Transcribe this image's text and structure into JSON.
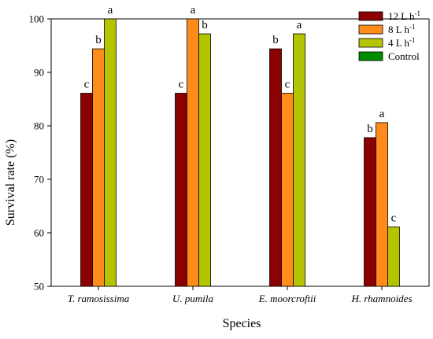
{
  "chart_data": {
    "type": "bar",
    "xlabel": "Species",
    "ylabel": "Survival rate (%)",
    "ylim": [
      50,
      100
    ],
    "yticks": [
      50,
      60,
      70,
      80,
      90,
      100
    ],
    "categories": [
      "T. ramosissima",
      "U. pumila",
      "E. moorcroftii",
      "H. rhamnoides"
    ],
    "series": [
      {
        "name": "12 L h-1",
        "base": "12 L h",
        "sup": "-1",
        "color": "#8b0000",
        "values": [
          86.1,
          86.1,
          94.4,
          77.8
        ],
        "letters": [
          "c",
          "c",
          "b",
          "b"
        ]
      },
      {
        "name": "8 L h-1",
        "base": "8 L h",
        "sup": "-1",
        "color": "#ff8c1a",
        "values": [
          94.4,
          100,
          86.1,
          80.6
        ],
        "letters": [
          "b",
          "a",
          "c",
          "a"
        ]
      },
      {
        "name": "4 L h-1",
        "base": "4 L h",
        "sup": "-1",
        "color": "#b5c400",
        "values": [
          100,
          97.2,
          97.2,
          61.1
        ],
        "letters": [
          "a",
          "b",
          "a",
          "c"
        ]
      },
      {
        "name": "Control",
        "base": "Control",
        "sup": "",
        "color": "#008c00",
        "values": [
          null,
          null,
          null,
          null
        ],
        "letters": [
          "",
          "",
          "",
          ""
        ]
      }
    ],
    "legend_position": "top-right",
    "grid": false
  }
}
